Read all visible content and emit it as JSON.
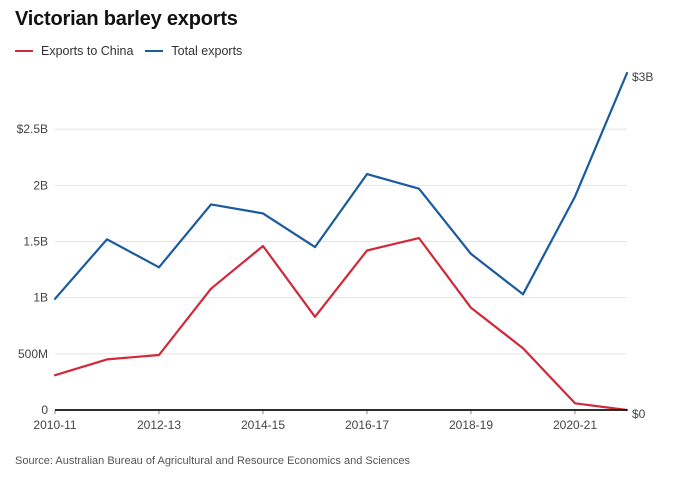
{
  "title": "Victorian barley exports",
  "source": "Source: Australian Bureau of Agricultural and Resource Economics and Sciences",
  "colors": {
    "china": "#d1283a",
    "total": "#1a5a9e",
    "grid": "#e4e4e4",
    "axis": "#111111"
  },
  "chart_data": {
    "type": "line",
    "title": "Victorian barley exports",
    "x": [
      "2010-11",
      "2011-12",
      "2012-13",
      "2013-14",
      "2014-15",
      "2015-16",
      "2016-17",
      "2017-18",
      "2018-19",
      "2019-20",
      "2020-21",
      "2021-22"
    ],
    "xtick_labels": [
      "2010-11",
      "2012-13",
      "2014-15",
      "2016-17",
      "2018-19",
      "2020-21"
    ],
    "series": [
      {
        "name": "Exports to China",
        "values": [
          0.31,
          0.45,
          0.49,
          1.08,
          1.46,
          0.83,
          1.42,
          1.53,
          0.91,
          0.55,
          0.06,
          0.0
        ]
      },
      {
        "name": "Total exports",
        "values": [
          0.99,
          1.52,
          1.27,
          1.83,
          1.75,
          1.45,
          2.1,
          1.97,
          1.39,
          1.03,
          1.9,
          3.0
        ]
      }
    ],
    "ylim": [
      0,
      3
    ],
    "left_ticks": [
      {
        "value": 0,
        "label": "0"
      },
      {
        "value": 0.5,
        "label": "500M"
      },
      {
        "value": 1.0,
        "label": "1B"
      },
      {
        "value": 1.5,
        "label": "1.5B"
      },
      {
        "value": 2.0,
        "label": "2B"
      },
      {
        "value": 2.5,
        "label": "$2.5B"
      }
    ],
    "end_labels": {
      "top": "$3B",
      "bottom": "$0"
    },
    "grid": true,
    "legend_position": "top-left"
  }
}
